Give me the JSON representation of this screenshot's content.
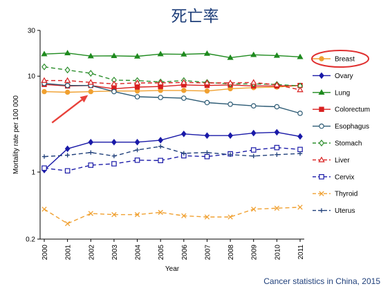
{
  "page": {
    "title": "死亡率",
    "source": "Cancer statistics in China, 2015"
  },
  "chart_data": {
    "type": "line",
    "title": "",
    "xlabel": "Year",
    "ylabel": "Mortality rate per 100 000",
    "yscale": "log",
    "ylim": [
      0.2,
      30
    ],
    "yticks": [
      0.2,
      1,
      10,
      30
    ],
    "ytick_labels": [
      "0.2",
      "1",
      "10",
      "30"
    ],
    "x": [
      2000,
      2001,
      2002,
      2003,
      2004,
      2005,
      2006,
      2007,
      2008,
      2009,
      2010,
      2011
    ],
    "legend_position": "right",
    "grid": false,
    "highlighted_series": "Breast",
    "series": [
      {
        "name": "Breast",
        "color": "#f0a030",
        "marker": "circle",
        "dash": "solid",
        "values": [
          6.9,
          6.8,
          6.9,
          7.0,
          7.0,
          7.1,
          7.1,
          7.0,
          7.4,
          7.6,
          7.7,
          8.0
        ]
      },
      {
        "name": "Ovary",
        "color": "#1a1aa8",
        "marker": "diamond",
        "dash": "solid",
        "values": [
          1.05,
          1.75,
          2.05,
          2.05,
          2.05,
          2.15,
          2.5,
          2.4,
          2.4,
          2.55,
          2.6,
          2.35
        ]
      },
      {
        "name": "Lung",
        "color": "#1e8a1e",
        "marker": "triangle",
        "dash": "solid",
        "values": [
          17.0,
          17.4,
          16.2,
          16.3,
          16.1,
          17.0,
          16.9,
          17.2,
          15.6,
          16.7,
          16.4,
          15.9
        ]
      },
      {
        "name": "Colorectum",
        "color": "#d81f1f",
        "marker": "square",
        "dash": "solid",
        "values": [
          8.2,
          7.9,
          8.0,
          7.4,
          7.7,
          7.8,
          8.1,
          8.0,
          8.1,
          7.9,
          7.9,
          8.0
        ]
      },
      {
        "name": "Esophagus",
        "color": "#2c5a74",
        "marker": "circle-open",
        "dash": "solid",
        "values": [
          8.4,
          8.0,
          8.0,
          6.9,
          6.1,
          6.0,
          5.9,
          5.3,
          5.1,
          4.9,
          4.8,
          4.1
        ]
      },
      {
        "name": "Stomach",
        "color": "#2e8f2e",
        "marker": "diamond-open",
        "dash": "dashed",
        "values": [
          12.5,
          11.6,
          10.7,
          9.1,
          9.0,
          8.7,
          9.0,
          8.6,
          8.3,
          8.3,
          8.2,
          7.9
        ]
      },
      {
        "name": "Liver",
        "color": "#d81f1f",
        "marker": "triangle-open",
        "dash": "dashed",
        "values": [
          9.0,
          9.0,
          8.6,
          8.3,
          8.5,
          8.5,
          8.6,
          8.5,
          8.5,
          8.6,
          8.1,
          7.2
        ]
      },
      {
        "name": "Cervix",
        "color": "#1a1aa8",
        "marker": "square-open",
        "dash": "dashed",
        "values": [
          1.1,
          1.03,
          1.18,
          1.22,
          1.33,
          1.32,
          1.48,
          1.45,
          1.55,
          1.7,
          1.8,
          1.72
        ]
      },
      {
        "name": "Thyroid",
        "color": "#f0a030",
        "marker": "x",
        "dash": "dashed",
        "values": [
          0.41,
          0.29,
          0.37,
          0.36,
          0.36,
          0.38,
          0.35,
          0.34,
          0.34,
          0.41,
          0.42,
          0.43
        ]
      },
      {
        "name": "Uterus",
        "color": "#1f3f7a",
        "marker": "plus",
        "dash": "dashed",
        "values": [
          1.45,
          1.5,
          1.6,
          1.47,
          1.7,
          1.85,
          1.57,
          1.6,
          1.52,
          1.47,
          1.52,
          1.56
        ]
      }
    ]
  }
}
